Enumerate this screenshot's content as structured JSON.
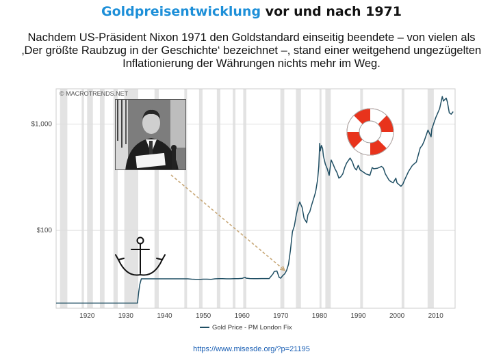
{
  "header": {
    "title_highlight": "Goldpreisentwicklung",
    "title_rest": " vor und nach 1971",
    "subtitle_lines": [
      "Nachdem US-Präsident Nixon 1971 den Goldstandard einseitig beendete – von vielen als",
      "‚Der größte Raubzug in der Geschichte‘ bezeichnet –, stand einer weitgehend ungezügelten",
      "Inflationierung der Währungen nichts mehr im Weg."
    ]
  },
  "footer": {
    "credit": "https://www.misesde.org/?p=21195"
  },
  "colors": {
    "title_highlight": "#1d8fd8",
    "line": "#1f4e63",
    "recession": "#e3e3e3",
    "arrow": "#c8a878",
    "lifebuoy": "#e8331c"
  },
  "icons": [
    "nixon-photo",
    "anchor-icon",
    "lifebuoy-icon"
  ],
  "chart_data": {
    "type": "line",
    "watermark": "© MACROTRENDS.NET",
    "legend": {
      "label": "Gold Price - PM London Fix",
      "position": "bottom"
    },
    "xlim": [
      1912,
      2015
    ],
    "x_ticks": [
      "1920",
      "1930",
      "1940",
      "1950",
      "1960",
      "1970",
      "1980",
      "1990",
      "2000",
      "2010"
    ],
    "yscale": "log",
    "ylim": [
      18.5,
      2150
    ],
    "y_ticks": [
      {
        "value": 100,
        "label": "$100"
      },
      {
        "value": 1000,
        "label": "$1,000"
      }
    ],
    "grid": "horizontal",
    "recessions": [
      [
        1913.0,
        1914.9
      ],
      [
        1918.6,
        1919.2
      ],
      [
        1920.0,
        1921.5
      ],
      [
        1923.3,
        1924.5
      ],
      [
        1926.8,
        1927.9
      ],
      [
        1929.6,
        1933.2
      ],
      [
        1937.4,
        1938.5
      ],
      [
        1945.1,
        1945.8
      ],
      [
        1948.9,
        1949.8
      ],
      [
        1953.5,
        1954.4
      ],
      [
        1957.6,
        1958.3
      ],
      [
        1960.3,
        1961.1
      ],
      [
        1969.9,
        1970.9
      ],
      [
        1973.9,
        1975.2
      ],
      [
        1980.0,
        1980.5
      ],
      [
        1981.5,
        1982.9
      ],
      [
        1990.5,
        1991.2
      ],
      [
        2001.2,
        2001.9
      ],
      [
        2007.9,
        2009.5
      ]
    ],
    "series": [
      {
        "name": "Gold Price - PM London Fix",
        "points": [
          [
            1912,
            20.67
          ],
          [
            1933.0,
            20.67
          ],
          [
            1933.3,
            26
          ],
          [
            1933.6,
            31
          ],
          [
            1934.0,
            35
          ],
          [
            1945.0,
            35
          ],
          [
            1946.0,
            35
          ],
          [
            1947.0,
            34.7
          ],
          [
            1948.0,
            34.6
          ],
          [
            1949.0,
            34.5
          ],
          [
            1950.0,
            34.7
          ],
          [
            1951.0,
            34.7
          ],
          [
            1952.0,
            34.6
          ],
          [
            1953.0,
            35
          ],
          [
            1954.0,
            35.1
          ],
          [
            1955.0,
            35.1
          ],
          [
            1956.0,
            35
          ],
          [
            1957.0,
            35
          ],
          [
            1958.0,
            35.1
          ],
          [
            1959.0,
            35.1
          ],
          [
            1960.0,
            35.3
          ],
          [
            1960.8,
            36.2
          ],
          [
            1961.0,
            35.5
          ],
          [
            1962.0,
            35.2
          ],
          [
            1963.0,
            35.1
          ],
          [
            1964.0,
            35.1
          ],
          [
            1965.0,
            35.2
          ],
          [
            1966.0,
            35.2
          ],
          [
            1967.0,
            35.2
          ],
          [
            1968.0,
            39
          ],
          [
            1968.3,
            41
          ],
          [
            1969.0,
            41.5
          ],
          [
            1969.6,
            36
          ],
          [
            1970.0,
            35.5
          ],
          [
            1970.5,
            37.5
          ],
          [
            1971.0,
            39
          ],
          [
            1971.5,
            42
          ],
          [
            1972.0,
            48
          ],
          [
            1972.5,
            65
          ],
          [
            1973.0,
            97
          ],
          [
            1973.5,
            110
          ],
          [
            1974.0,
            140
          ],
          [
            1974.5,
            170
          ],
          [
            1974.9,
            185
          ],
          [
            1975.5,
            165
          ],
          [
            1976.0,
            130
          ],
          [
            1976.7,
            118
          ],
          [
            1977.0,
            140
          ],
          [
            1977.5,
            150
          ],
          [
            1978.0,
            175
          ],
          [
            1978.5,
            200
          ],
          [
            1979.0,
            230
          ],
          [
            1979.5,
            300
          ],
          [
            1979.8,
            400
          ],
          [
            1980.05,
            660
          ],
          [
            1980.2,
            560
          ],
          [
            1980.5,
            630
          ],
          [
            1980.8,
            590
          ],
          [
            1981.0,
            500
          ],
          [
            1981.5,
            420
          ],
          [
            1982.0,
            380
          ],
          [
            1982.5,
            330
          ],
          [
            1983.0,
            460
          ],
          [
            1983.5,
            420
          ],
          [
            1984.0,
            380
          ],
          [
            1984.5,
            350
          ],
          [
            1985.0,
            310
          ],
          [
            1985.5,
            320
          ],
          [
            1986.0,
            340
          ],
          [
            1986.5,
            390
          ],
          [
            1987.0,
            430
          ],
          [
            1987.9,
            480
          ],
          [
            1988.5,
            440
          ],
          [
            1989.0,
            390
          ],
          [
            1989.5,
            370
          ],
          [
            1990.0,
            410
          ],
          [
            1990.5,
            370
          ],
          [
            1991.0,
            360
          ],
          [
            1992.0,
            340
          ],
          [
            1993.0,
            330
          ],
          [
            1993.6,
            390
          ],
          [
            1994.0,
            380
          ],
          [
            1995.0,
            385
          ],
          [
            1996.0,
            400
          ],
          [
            1996.5,
            385
          ],
          [
            1997.0,
            340
          ],
          [
            1998.0,
            295
          ],
          [
            1999.0,
            280
          ],
          [
            1999.7,
            310
          ],
          [
            2000.0,
            280
          ],
          [
            2001.0,
            260
          ],
          [
            2001.5,
            272
          ],
          [
            2002.0,
            300
          ],
          [
            2003.0,
            360
          ],
          [
            2004.0,
            410
          ],
          [
            2005.0,
            440
          ],
          [
            2006.0,
            600
          ],
          [
            2006.5,
            630
          ],
          [
            2007.0,
            690
          ],
          [
            2008.0,
            880
          ],
          [
            2008.8,
            760
          ],
          [
            2009.0,
            900
          ],
          [
            2010.0,
            1150
          ],
          [
            2011.0,
            1400
          ],
          [
            2011.7,
            1820
          ],
          [
            2012.0,
            1650
          ],
          [
            2012.7,
            1760
          ],
          [
            2013.0,
            1620
          ],
          [
            2013.5,
            1280
          ],
          [
            2014.0,
            1240
          ],
          [
            2014.5,
            1310
          ]
        ]
      }
    ],
    "annotation": {
      "type": "arrow",
      "from": "nixon-photo",
      "to": {
        "x": 1971,
        "y": 42
      }
    }
  }
}
